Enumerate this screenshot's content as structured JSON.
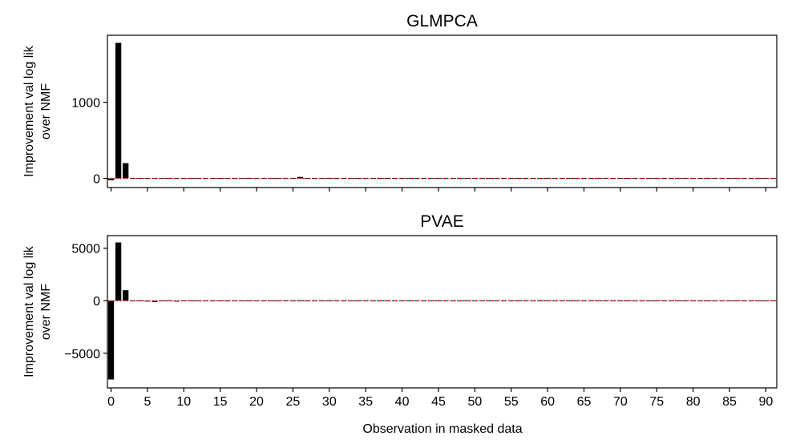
{
  "figure": {
    "xlabel": "Observation in masked data"
  },
  "chart_data": [
    {
      "type": "bar",
      "title": "GLMPCA",
      "xlabel": "",
      "ylabel": "Improvement val log lik\nover NMF",
      "ylabel_lines": [
        "Improvement val log lik",
        "over NMF"
      ],
      "xlim": [
        -0.5,
        91.5
      ],
      "ylim": [
        -120,
        1880
      ],
      "yticks": [
        0,
        1000
      ],
      "ytick_labels": [
        "0",
        "1000"
      ],
      "xticks": [
        0,
        5,
        10,
        15,
        20,
        25,
        30,
        35,
        40,
        45,
        50,
        55,
        60,
        65,
        70,
        75,
        80,
        85,
        90
      ],
      "xtick_labels_shown": false,
      "reference_line": {
        "y": 0,
        "color": "#ff0000",
        "style": "dotted"
      },
      "bar_color": "#000000",
      "x": [
        0,
        1,
        2,
        3,
        4,
        5,
        6,
        7,
        8,
        9,
        10,
        11,
        12,
        13,
        14,
        15,
        16,
        17,
        18,
        19,
        20,
        21,
        22,
        23,
        24,
        25,
        26,
        27,
        28,
        29,
        30,
        31,
        32,
        33,
        34,
        35,
        36,
        37,
        38,
        39,
        40,
        41,
        42,
        43,
        44,
        45,
        46,
        47,
        48,
        49,
        50,
        51,
        52,
        53,
        54,
        55,
        56,
        57,
        58,
        59,
        60,
        61,
        62,
        63,
        64,
        65,
        66,
        67,
        68,
        69,
        70,
        71,
        72,
        73,
        74,
        75,
        76,
        77,
        78,
        79,
        80,
        81,
        82,
        83,
        84,
        85,
        86,
        87,
        88,
        89,
        90,
        91
      ],
      "values": [
        -25,
        1780,
        200,
        5,
        -5,
        -3,
        3,
        -6,
        2,
        -8,
        -5,
        -4,
        2,
        -3,
        1,
        -2,
        3,
        5,
        -1,
        2,
        1,
        -2,
        3,
        -1,
        2,
        1,
        20,
        4,
        -2,
        -4,
        2,
        -1,
        1,
        -2,
        3,
        -5,
        1,
        -2,
        2,
        1,
        -1,
        2,
        -1,
        1,
        3,
        5,
        3,
        -1,
        2,
        1,
        -2,
        1,
        -1,
        -4,
        2,
        1,
        -1,
        2,
        1,
        -1,
        1,
        2,
        -1,
        1,
        2,
        -1,
        1,
        -1,
        2,
        1,
        -1,
        1,
        2,
        -1,
        1,
        -1,
        2,
        1,
        -1,
        1,
        2,
        -1,
        1,
        -1,
        1,
        2,
        -1,
        1,
        -1,
        2,
        1,
        -1
      ]
    },
    {
      "type": "bar",
      "title": "PVAE",
      "xlabel": "Observation in masked data",
      "ylabel": "Improvement val log lik\nover NMF",
      "ylabel_lines": [
        "Improvement val log lik",
        "over NMF"
      ],
      "xlim": [
        -0.5,
        91.5
      ],
      "ylim": [
        -8300,
        6200
      ],
      "yticks": [
        -5000,
        0,
        5000
      ],
      "ytick_labels": [
        "−5000",
        "0",
        "5000"
      ],
      "xticks": [
        0,
        5,
        10,
        15,
        20,
        25,
        30,
        35,
        40,
        45,
        50,
        55,
        60,
        65,
        70,
        75,
        80,
        85,
        90
      ],
      "xtick_labels": [
        "0",
        "5",
        "10",
        "15",
        "20",
        "25",
        "30",
        "35",
        "40",
        "45",
        "50",
        "55",
        "60",
        "65",
        "70",
        "75",
        "80",
        "85",
        "90"
      ],
      "reference_line": {
        "y": 0,
        "color": "#ff0000",
        "style": "dotted"
      },
      "bar_color": "#000000",
      "x": [
        0,
        1,
        2,
        3,
        4,
        5,
        6,
        7,
        8,
        9,
        10,
        11,
        12,
        13,
        14,
        15,
        16,
        17,
        18,
        19,
        20,
        21,
        22,
        23,
        24,
        25,
        26,
        27,
        28,
        29,
        30,
        31,
        32,
        33,
        34,
        35,
        36,
        37,
        38,
        39,
        40,
        41,
        42,
        43,
        44,
        45,
        46,
        47,
        48,
        49,
        50,
        51,
        52,
        53,
        54,
        55,
        56,
        57,
        58,
        59,
        60,
        61,
        62,
        63,
        64,
        65,
        66,
        67,
        68,
        69,
        70,
        71,
        72,
        73,
        74,
        75,
        76,
        77,
        78,
        79,
        80,
        81,
        82,
        83,
        84,
        85,
        86,
        87,
        88,
        89,
        90,
        91
      ],
      "values": [
        -7500,
        5550,
        1000,
        60,
        -40,
        -80,
        -120,
        -60,
        -40,
        -80,
        -60,
        -50,
        -40,
        -70,
        -50,
        -30,
        10,
        5,
        -5,
        8,
        -3,
        -40,
        4,
        -2,
        3,
        1,
        -5,
        2,
        -1,
        3,
        2,
        -2,
        1,
        -3,
        2,
        -60,
        1,
        -2,
        2,
        1,
        -1,
        2,
        -1,
        1,
        3,
        5,
        3,
        -1,
        2,
        1,
        -2,
        1,
        -1,
        -4,
        2,
        1,
        -1,
        2,
        1,
        -1,
        1,
        2,
        -1,
        1,
        2,
        -1,
        1,
        -1,
        2,
        1,
        -1,
        1,
        2,
        -1,
        1,
        -1,
        2,
        1,
        -1,
        1,
        2,
        -1,
        1,
        -1,
        1,
        2,
        -1,
        1,
        -1,
        2,
        1,
        -1
      ]
    }
  ]
}
